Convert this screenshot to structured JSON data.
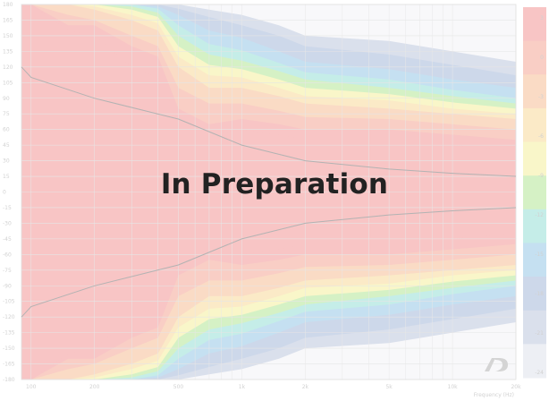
{
  "overlay": {
    "text": "In Preparation"
  },
  "logo": {
    "text": "AD"
  },
  "chart_data": {
    "type": "heatmap",
    "subtype": "directivity-map",
    "title": "",
    "xlabel": "Frequency (Hz)",
    "ylabel": "",
    "x_scale": "log",
    "xlim": [
      90,
      20000
    ],
    "ylim": [
      -180,
      180
    ],
    "x_ticks": [
      100,
      200,
      500,
      1000,
      2000,
      5000,
      10000,
      20000
    ],
    "x_tick_labels": [
      "100",
      "200",
      "500",
      "1k",
      "2k",
      "5k",
      "10k",
      "20k"
    ],
    "y_ticks": [
      180,
      165,
      150,
      135,
      120,
      105,
      90,
      75,
      60,
      45,
      30,
      15,
      0,
      -15,
      -30,
      -45,
      -60,
      -75,
      -90,
      -105,
      -120,
      -135,
      -150,
      -165,
      -180
    ],
    "y_tick_labels": [
      "180",
      "165",
      "150",
      "135",
      "120",
      "105",
      "90",
      "75",
      "60",
      "45",
      "30",
      "15",
      "0",
      "-15",
      "-30",
      "-45",
      "-60",
      "-75",
      "-90",
      "-105",
      "-120",
      "-135",
      "-150",
      "-165",
      "-180"
    ],
    "grid": true,
    "colorbar_labels": [
      "3",
      "0",
      "-3",
      "-6",
      "-9",
      "-12",
      "-15",
      "-18",
      "-21",
      "-24"
    ],
    "colorbar_colors": [
      "#f4a6a6",
      "#f6b4a6",
      "#f7c8a6",
      "#f9dfa9",
      "#f6f2ad",
      "#bfeaa6",
      "#a6e4dc",
      "#a6d0ea",
      "#b3c3df",
      "#c7cfe2",
      "#e4e6ee"
    ],
    "contours": [
      {
        "freq": 90,
        "upper": 120,
        "lower": -120
      },
      {
        "freq": 100,
        "upper": 110,
        "lower": -110
      },
      {
        "freq": 200,
        "upper": 90,
        "lower": -90
      },
      {
        "freq": 500,
        "upper": 70,
        "lower": -70
      },
      {
        "freq": 1000,
        "upper": 45,
        "lower": -45
      },
      {
        "freq": 2000,
        "upper": 30,
        "lower": -30
      },
      {
        "freq": 5000,
        "upper": 22,
        "lower": -22
      },
      {
        "freq": 10000,
        "upper": 18,
        "lower": -18
      },
      {
        "freq": 20000,
        "upper": 15,
        "lower": -15
      }
    ],
    "series": [
      {
        "color": "#f4a6a6",
        "values": [
          180,
          180,
          155,
          150,
          120,
          110,
          70,
          55,
          60,
          55,
          50,
          50,
          45,
          40
        ]
      },
      {
        "color": "#f6b4a6",
        "values": [
          180,
          180,
          160,
          160,
          140,
          130,
          80,
          65,
          70,
          65,
          60,
          60,
          55,
          50
        ]
      },
      {
        "color": "#f7c8a6",
        "values": [
          180,
          180,
          170,
          165,
          150,
          140,
          100,
          85,
          85,
          78,
          72,
          70,
          65,
          60
        ]
      },
      {
        "color": "#f9dfa9",
        "values": [
          180,
          180,
          180,
          175,
          165,
          155,
          120,
          100,
          100,
          92,
          85,
          80,
          75,
          70
        ]
      },
      {
        "color": "#f6f2ad",
        "values": [
          180,
          180,
          180,
          178,
          170,
          162,
          130,
          112,
          110,
          100,
          92,
          88,
          80,
          75
        ]
      },
      {
        "color": "#bfeaa6",
        "values": [
          180,
          180,
          180,
          180,
          175,
          168,
          140,
          122,
          118,
          108,
          100,
          94,
          86,
          80
        ]
      },
      {
        "color": "#a6e4dc",
        "values": [
          180,
          180,
          180,
          180,
          178,
          172,
          150,
          132,
          126,
          116,
          108,
          100,
          92,
          85
        ]
      },
      {
        "color": "#a6d0ea",
        "values": [
          180,
          180,
          180,
          180,
          180,
          176,
          160,
          142,
          136,
          124,
          115,
          108,
          98,
          90
        ]
      },
      {
        "color": "#b3c3df",
        "values": [
          180,
          180,
          180,
          180,
          180,
          178,
          170,
          155,
          148,
          135,
          125,
          118,
          108,
          100
        ]
      },
      {
        "color": "#c7cfe2",
        "values": [
          180,
          180,
          180,
          180,
          180,
          180,
          176,
          168,
          160,
          150,
          140,
          132,
          122,
          112
        ]
      }
    ],
    "freqs": [
      90,
      100,
      150,
      200,
      300,
      400,
      500,
      700,
      1000,
      1500,
      2000,
      5000,
      10000,
      20000
    ]
  }
}
